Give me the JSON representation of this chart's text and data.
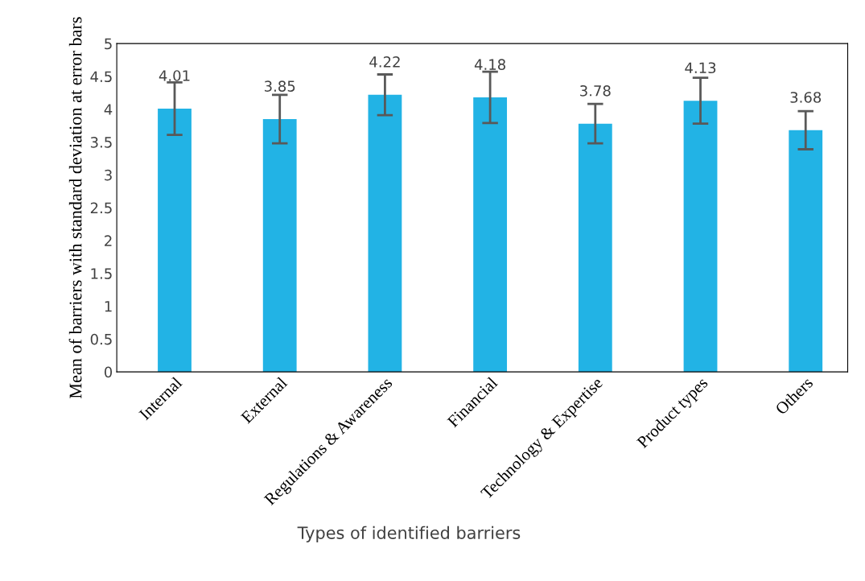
{
  "chart_data": {
    "type": "bar",
    "xlabel": "Types of identified barriers",
    "ylabel": "Mean of barriers with standard deviation at error bars",
    "categories": [
      "Internal",
      "External",
      "Regulations & Awareness",
      "Financial",
      "Technology & Expertise",
      "Product types",
      "Others"
    ],
    "values": [
      4.01,
      3.85,
      4.22,
      4.18,
      3.78,
      4.13,
      3.68
    ],
    "errors": [
      0.4,
      0.37,
      0.31,
      0.39,
      0.3,
      0.35,
      0.29
    ],
    "color": "#22b3e5",
    "data_labels": true,
    "grid": false,
    "legend": false,
    "ylim": [
      0,
      5
    ],
    "yticks": [
      0,
      0.5,
      1,
      1.5,
      2,
      2.5,
      3,
      3.5,
      4,
      4.5,
      5
    ]
  }
}
